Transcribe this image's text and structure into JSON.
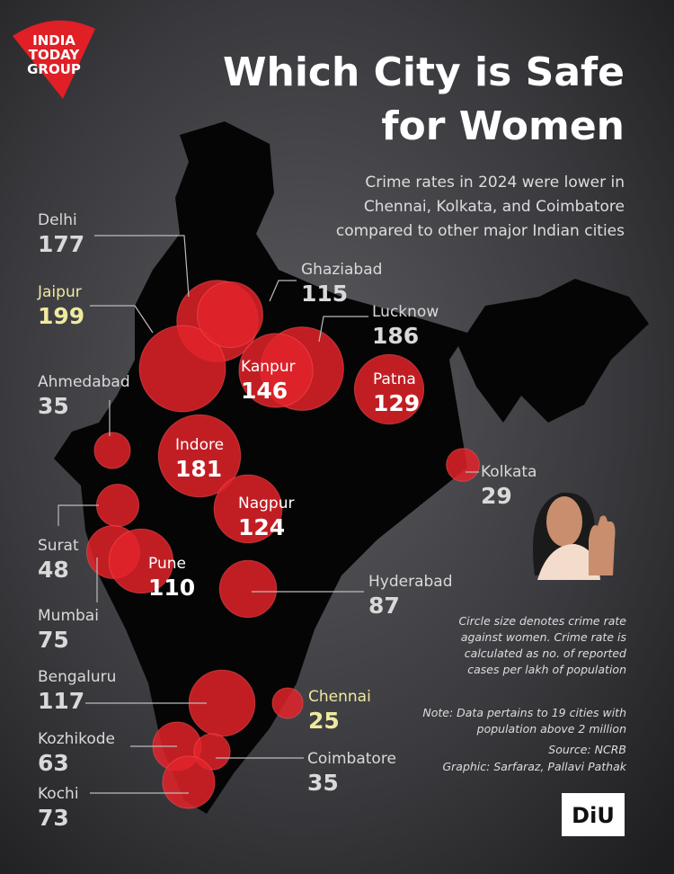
{
  "logo": [
    "INDIA",
    "TODAY",
    "GROUP"
  ],
  "title": [
    "Which City is Safe",
    "for Women"
  ],
  "subtitle": [
    "Crime rates in 2024 were lower in",
    "Chennai, Kolkata, and Coimbatore",
    "compared to other major Indian cities"
  ],
  "bubble_color": "#e3232a",
  "label_color": "#d9d9d9",
  "highlight_color": "#f0eaa0",
  "cities": [
    {
      "name": "Delhi",
      "value": 177
    },
    {
      "name": "Jaipur",
      "value": 199,
      "highlight": true
    },
    {
      "name": "Ghaziabad",
      "value": 115
    },
    {
      "name": "Lucknow",
      "value": 186
    },
    {
      "name": "Kanpur",
      "value": 146
    },
    {
      "name": "Patna",
      "value": 129
    },
    {
      "name": "Ahmedabad",
      "value": 35
    },
    {
      "name": "Kolkata",
      "value": 29
    },
    {
      "name": "Indore",
      "value": 181
    },
    {
      "name": "Nagpur",
      "value": 124
    },
    {
      "name": "Surat",
      "value": 48
    },
    {
      "name": "Mumbai",
      "value": 75
    },
    {
      "name": "Pune",
      "value": 110
    },
    {
      "name": "Hyderabad",
      "value": 87
    },
    {
      "name": "Chennai",
      "value": 25,
      "highlight": true
    },
    {
      "name": "Bengaluru",
      "value": 117
    },
    {
      "name": "Kozhikode",
      "value": 63
    },
    {
      "name": "Coimbatore",
      "value": 35
    },
    {
      "name": "Kochi",
      "value": 73
    }
  ],
  "notes": [
    "Circle size denotes crime rate",
    "against women. Crime rate is",
    "calculated as no. of reported",
    "cases per lakh of population"
  ],
  "note2": [
    "Note: Data pertains to 19 cities with",
    "population above 2 million"
  ],
  "source": "Source: NCRB",
  "credit": "Graphic: Sarfaraz, Pallavi Pathak",
  "badge": "DiU"
}
